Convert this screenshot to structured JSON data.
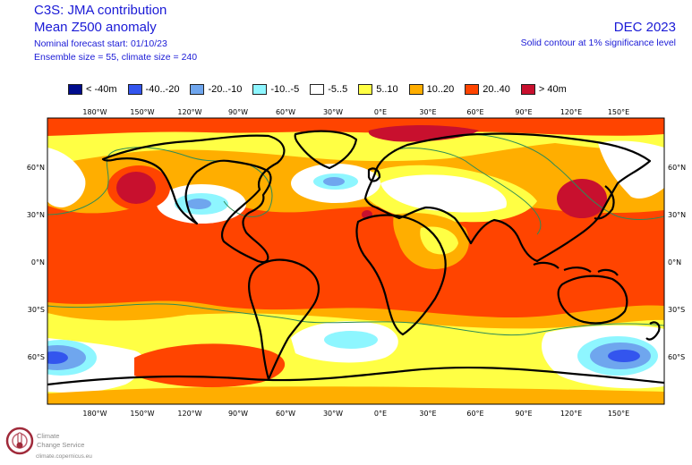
{
  "header": {
    "title": "C3S: JMA contribution",
    "variable": "Mean Z500 anomaly",
    "forecast_start": "Nominal forecast start: 01/10/23",
    "ensemble": "Ensemble size = 55, climate size = 240",
    "period": "DEC 2023",
    "significance": "Solid contour at 1% significance level"
  },
  "legend": [
    {
      "label": "< -40m",
      "color": "#000c8c"
    },
    {
      "label": "-40..-20",
      "color": "#3355ee"
    },
    {
      "label": "-20..-10",
      "color": "#6fa6ee"
    },
    {
      "label": "-10..-5",
      "color": "#8ef6ff"
    },
    {
      "label": "-5..5",
      "color": "#ffffff"
    },
    {
      "label": "5..10",
      "color": "#ffff44"
    },
    {
      "label": "10..20",
      "color": "#ffae00"
    },
    {
      "label": "20..40",
      "color": "#ff4400"
    },
    {
      "label": "> 40m",
      "color": "#c8102e"
    }
  ],
  "axes": {
    "lon_labels": [
      "180°W",
      "150°W",
      "120°W",
      "90°W",
      "60°W",
      "30°W",
      "0°E",
      "30°E",
      "60°E",
      "90°E",
      "120°E",
      "150°E"
    ],
    "lat_labels_left": [
      "60°N",
      "30°N",
      "0°N",
      "30°S",
      "60°S"
    ],
    "lat_labels_right": [
      "60°N",
      "30°N",
      "0°N",
      "30°S",
      "60°S"
    ]
  },
  "logo": {
    "line1": "Climate",
    "line2": "Change Service",
    "url": "climate.copernicus.eu"
  }
}
